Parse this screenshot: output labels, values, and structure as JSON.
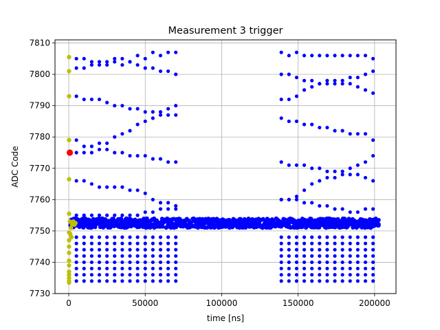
{
  "chart_data": {
    "type": "scatter",
    "title": "Measurement 3 trigger",
    "xlabel": "time [ns]",
    "ylabel": "ADC Code",
    "xlim": [
      -9000,
      214000
    ],
    "ylim": [
      7730,
      7811
    ],
    "x_ticks": [
      0,
      50000,
      100000,
      150000,
      200000
    ],
    "x_tick_labels": [
      "0",
      "50000",
      "100000",
      "150000",
      "200000"
    ],
    "y_ticks": [
      7730,
      7740,
      7750,
      7760,
      7770,
      7780,
      7790,
      7800,
      7810
    ],
    "y_tick_labels": [
      "7730",
      "7740",
      "7750",
      "7760",
      "7770",
      "7780",
      "7790",
      "7800",
      "7810"
    ],
    "grid": true,
    "colors": {
      "blue": "#0000ff",
      "yellow": "#bfbf00",
      "red": "#ff0000"
    },
    "series": [
      {
        "color": "blue",
        "marker_size": "small",
        "burst_1": {
          "x_range": [
            5000,
            73000
          ],
          "x_step": 5000,
          "upper_lines_y": [
            [
              7805,
              7805,
              7804,
              7804,
              7804,
              7805,
              7805,
              7804,
              7806,
              7805,
              7807,
              7806,
              7807,
              7807
            ],
            [
              7802,
              7802,
              7803,
              7803,
              7803,
              7804,
              7803,
              7804,
              7803,
              7802,
              7802,
              7801,
              7801,
              7800
            ],
            [
              7793,
              7792,
              7792,
              7792,
              7791,
              7790,
              7790,
              7789,
              7789,
              7788,
              7788,
              7788,
              7789,
              7790
            ],
            [
              7779,
              7777,
              7777,
              7778,
              7778,
              7780,
              7781,
              7782,
              7784,
              7785,
              7786,
              7787,
              7787,
              7787
            ],
            [
              7775,
              7775,
              7775,
              7776,
              7776,
              7775,
              7775,
              7774,
              7774,
              7774,
              7773,
              7773,
              7772,
              7772
            ],
            [
              7766,
              7766,
              7765,
              7764,
              7764,
              7764,
              7764,
              7763,
              7763,
              7762,
              7760,
              7759,
              7759,
              7758
            ],
            [
              7755,
              7755,
              7755,
              7755,
              7755,
              7755,
              7755,
              7755,
              7755,
              7756,
              7756,
              7757,
              7757,
              7757
            ]
          ],
          "lower_lines_y": [
            7748,
            7746,
            7744,
            7742,
            7740,
            7738,
            7736,
            7734
          ]
        },
        "baseline": {
          "x_range": [
            1000,
            203000
          ],
          "y_center": 7752.5,
          "y_spread": 1.5
        },
        "burst_2": {
          "x_range": [
            139000,
            201000
          ],
          "x_step": 5000,
          "upper_lines_y": [
            [
              7807,
              7806,
              7807,
              7806,
              7806,
              7806,
              7806,
              7806,
              7806,
              7806,
              7806,
              7806,
              7805
            ],
            [
              7800,
              7800,
              7799,
              7798,
              7798,
              7797,
              7797,
              7797,
              7798,
              7799,
              7799,
              7800,
              7801
            ],
            [
              7792,
              7792,
              7793,
              7795,
              7796,
              7797,
              7798,
              7798,
              7797,
              7797,
              7796,
              7795,
              7794
            ],
            [
              7786,
              7785,
              7785,
              7784,
              7784,
              7783,
              7783,
              7782,
              7782,
              7781,
              7781,
              7781,
              7779
            ],
            [
              7772,
              7771,
              7771,
              7771,
              7770,
              7770,
              7769,
              7769,
              7769,
              7770,
              7771,
              7772,
              7774
            ],
            [
              7760,
              7760,
              7761,
              7763,
              7765,
              7766,
              7767,
              7767,
              7768,
              7768,
              7768,
              7767,
              7766
            ],
            [
              7760,
              7760,
              7760,
              7759,
              7759,
              7758,
              7758,
              7757,
              7757,
              7756,
              7756,
              7757,
              7757
            ]
          ],
          "lower_lines_y": [
            7748,
            7746,
            7744,
            7742,
            7740,
            7738,
            7736,
            7734
          ]
        }
      },
      {
        "color": "yellow",
        "marker_size": "medium",
        "points": [
          [
            200,
            7805.5
          ],
          [
            200,
            7801
          ],
          [
            200,
            7793
          ],
          [
            200,
            7779
          ],
          [
            200,
            7766.5
          ],
          [
            200,
            7755.5
          ],
          [
            200,
            7749.5
          ],
          [
            200,
            7747
          ],
          [
            200,
            7745
          ],
          [
            200,
            7743
          ],
          [
            200,
            7740.5
          ],
          [
            200,
            7739
          ],
          [
            200,
            7737
          ],
          [
            200,
            7736
          ],
          [
            200,
            7735
          ],
          [
            200,
            7734
          ],
          [
            200,
            7733.5
          ],
          [
            700,
            7753
          ],
          [
            1500,
            7751
          ],
          [
            2200,
            7752
          ],
          [
            3000,
            7753
          ],
          [
            3800,
            7752
          ],
          [
            4400,
            7752.5
          ],
          [
            1000,
            7749
          ],
          [
            1800,
            7748
          ]
        ]
      },
      {
        "color": "red",
        "marker_size": "large",
        "points": [
          [
            700,
            7775
          ]
        ]
      }
    ]
  }
}
